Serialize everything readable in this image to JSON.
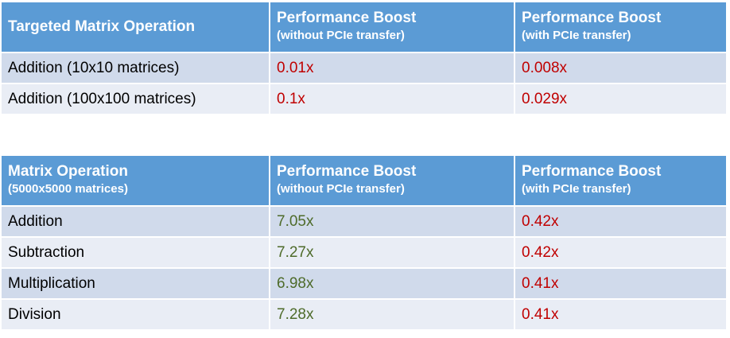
{
  "chart_data": [
    {
      "type": "table",
      "columns": [
        "Targeted Matrix Operation",
        "Performance Boost (without PCIe transfer)",
        "Performance Boost (with PCIe transfer)"
      ],
      "header": {
        "col1": {
          "title": "Targeted Matrix Operation",
          "subtitle": ""
        },
        "col2": {
          "title": "Performance Boost",
          "subtitle": "(without  PCIe transfer)"
        },
        "col3": {
          "title": "Performance Boost",
          "subtitle": "(with PCIe transfer)"
        }
      },
      "rows": [
        {
          "operation": "Addition (10x10  matrices)",
          "without_pcie": "0.01x",
          "with_pcie": "0.008x"
        },
        {
          "operation": "Addition (100x100  matrices)",
          "without_pcie": "0.1x",
          "with_pcie": "0.029x"
        }
      ],
      "values_without_pcie": [
        0.01,
        0.1
      ],
      "values_with_pcie": [
        0.008,
        0.029
      ]
    },
    {
      "type": "table",
      "columns": [
        "Matrix Operation (5000x5000 matrices)",
        "Performance Boost (without PCIe transfer)",
        "Performance Boost (with PCIe transfer)"
      ],
      "header": {
        "col1": {
          "title": "Matrix Operation",
          "subtitle": "(5000x5000 matrices)"
        },
        "col2": {
          "title": "Performance Boost",
          "subtitle": "(without  PCIe transfer)"
        },
        "col3": {
          "title": "Performance Boost",
          "subtitle": "(with PCIe transfer)"
        }
      },
      "rows": [
        {
          "operation": "Addition",
          "without_pcie": "7.05x",
          "with_pcie": "0.42x"
        },
        {
          "operation": "Subtraction",
          "without_pcie": "7.27x",
          "with_pcie": "0.42x"
        },
        {
          "operation": "Multiplication",
          "without_pcie": "6.98x",
          "with_pcie": "0.41x"
        },
        {
          "operation": "Division",
          "without_pcie": "7.28x",
          "with_pcie": "0.41x"
        }
      ],
      "values_without_pcie": [
        7.05,
        7.27,
        6.98,
        7.28
      ],
      "values_with_pcie": [
        0.42,
        0.42,
        0.41,
        0.41
      ]
    }
  ],
  "colors": {
    "header_bg": "#5b9bd5",
    "header_text": "#ffffff",
    "row_odd_bg": "#d0daeb",
    "row_even_bg": "#e9edf5",
    "value_red": "#c00000",
    "value_green": "#4e6b2a"
  }
}
